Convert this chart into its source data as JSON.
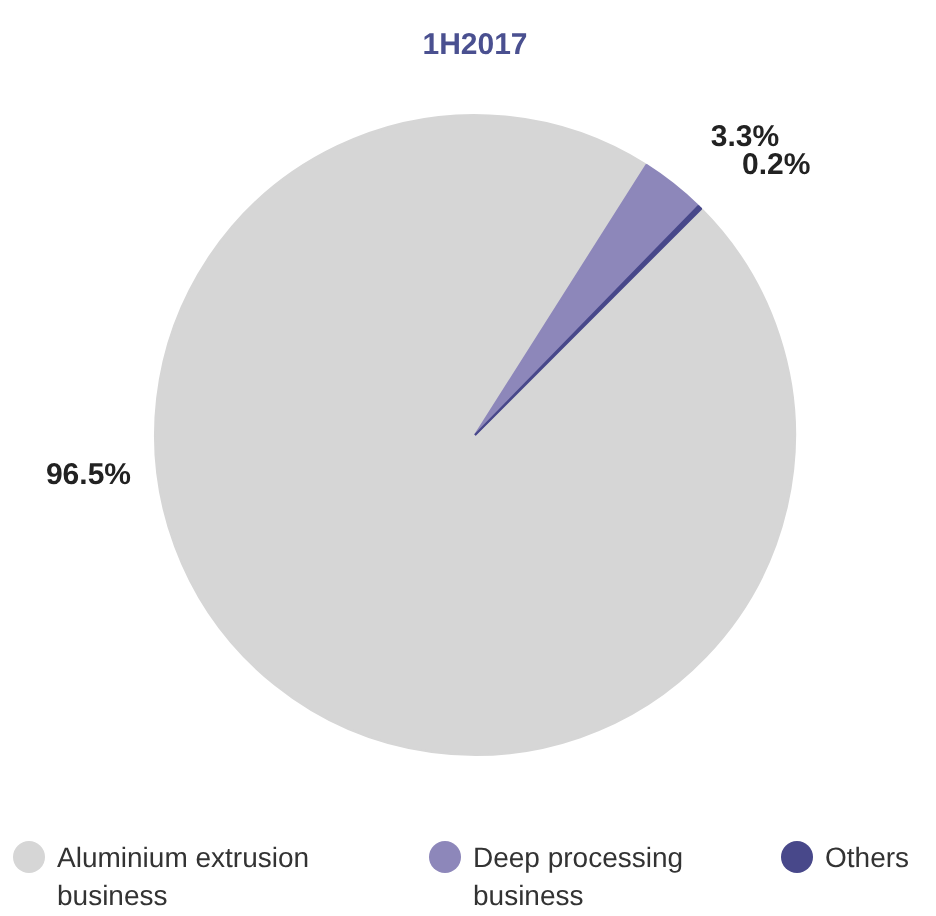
{
  "chart_data": {
    "type": "pie",
    "title": "1H2017",
    "categories": [
      "Aluminium extrusion business",
      "Deep processing business",
      "Others"
    ],
    "values": [
      96.5,
      3.3,
      0.2
    ],
    "colors": [
      "#d6d6d6",
      "#8d87ba",
      "#48488a"
    ],
    "value_labels": [
      "96.5%",
      "3.3%",
      "0.2%"
    ],
    "legend": "bottom"
  }
}
